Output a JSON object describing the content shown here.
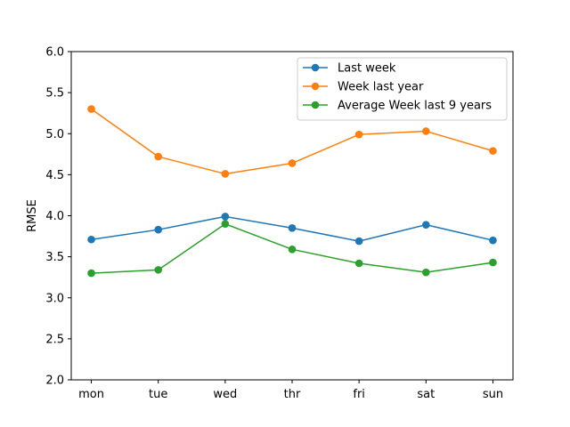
{
  "chart_data": {
    "type": "line",
    "title": "",
    "xlabel": "",
    "ylabel": "RMSE",
    "categories": [
      "mon",
      "tue",
      "wed",
      "thr",
      "fri",
      "sat",
      "sun"
    ],
    "ylim": [
      2.0,
      6.0
    ],
    "yticks": [
      "2.0",
      "2.5",
      "3.0",
      "3.5",
      "4.0",
      "4.5",
      "5.0",
      "5.5",
      "6.0"
    ],
    "grid": false,
    "legend_position": "top-right",
    "series": [
      {
        "name": "Last week",
        "color": "#1f77b4",
        "values": [
          3.71,
          3.83,
          3.99,
          3.85,
          3.69,
          3.89,
          3.7
        ]
      },
      {
        "name": "Week last year",
        "color": "#ff7f0e",
        "values": [
          5.3,
          4.72,
          4.51,
          4.64,
          4.99,
          5.03,
          4.79
        ]
      },
      {
        "name": "Average Week last 9 years",
        "color": "#2ca02c",
        "values": [
          3.3,
          3.34,
          3.9,
          3.59,
          3.42,
          3.31,
          3.43
        ]
      }
    ]
  }
}
